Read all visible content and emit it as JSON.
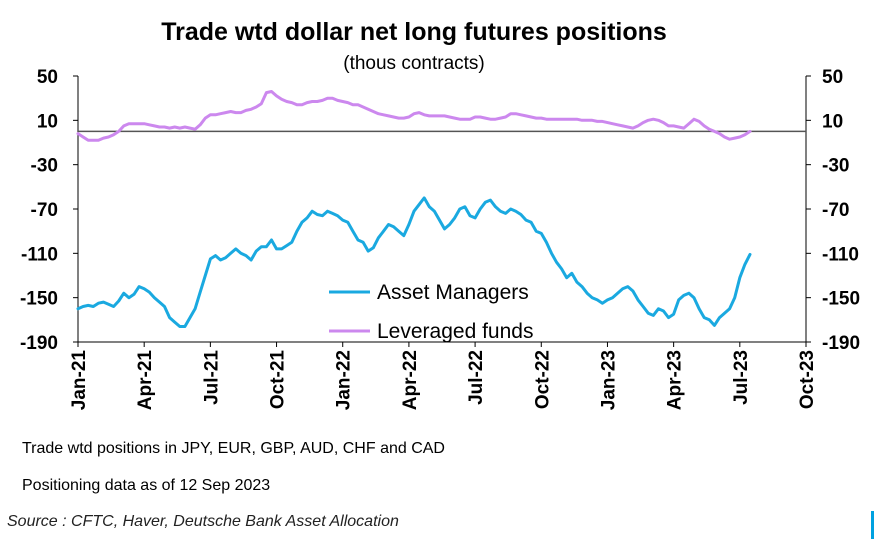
{
  "chart_data": {
    "type": "line",
    "title": "Trade wtd dollar net long futures positions",
    "subtitle": "(thous contracts)",
    "ylim": [
      -190,
      50
    ],
    "yticks": [
      50,
      10,
      -30,
      -70,
      -110,
      -150,
      -190
    ],
    "ytick_labels": [
      "50",
      "10",
      "-30",
      "-70",
      "-110",
      "-150",
      "-190"
    ],
    "zero_line": 0,
    "x_ticks": [
      {
        "label": "Jan-21",
        "week": 0
      },
      {
        "label": "Apr-21",
        "week": 13
      },
      {
        "label": "Jul-21",
        "week": 26
      },
      {
        "label": "Oct-21",
        "week": 39
      },
      {
        "label": "Jan-22",
        "week": 52
      },
      {
        "label": "Apr-22",
        "week": 65
      },
      {
        "label": "Jul-22",
        "week": 78
      },
      {
        "label": "Oct-22",
        "week": 91
      },
      {
        "label": "Jan-23",
        "week": 104
      },
      {
        "label": "Apr-23",
        "week": 117
      },
      {
        "label": "Jul-23",
        "week": 130
      },
      {
        "label": "Oct-23",
        "week": 143
      }
    ],
    "legend": [
      "Asset Managers",
      "Leveraged funds"
    ],
    "series": [
      {
        "name": "Asset Managers",
        "color": "#1aa9e0",
        "values": [
          -160,
          -158,
          -157,
          -158,
          -155,
          -154,
          -156,
          -158,
          -153,
          -146,
          -150,
          -147,
          -140,
          -142,
          -145,
          -150,
          -154,
          -158,
          -168,
          -172,
          -176,
          -176,
          -168,
          -160,
          -145,
          -130,
          -115,
          -112,
          -116,
          -114,
          -110,
          -106,
          -110,
          -112,
          -116,
          -108,
          -104,
          -104,
          -98,
          -106,
          -106,
          -103,
          -100,
          -90,
          -82,
          -78,
          -72,
          -75,
          -76,
          -72,
          -74,
          -76,
          -80,
          -82,
          -90,
          -98,
          -100,
          -108,
          -105,
          -96,
          -90,
          -84,
          -86,
          -90,
          -94,
          -84,
          -72,
          -66,
          -60,
          -68,
          -72,
          -80,
          -88,
          -84,
          -78,
          -70,
          -68,
          -76,
          -78,
          -70,
          -64,
          -62,
          -68,
          -72,
          -74,
          -70,
          -72,
          -75,
          -80,
          -82,
          -90,
          -92,
          -100,
          -110,
          -118,
          -124,
          -132,
          -128,
          -136,
          -140,
          -146,
          -150,
          -152,
          -155,
          -152,
          -150,
          -146,
          -142,
          -140,
          -144,
          -152,
          -158,
          -164,
          -166,
          -160,
          -162,
          -168,
          -165,
          -152,
          -148,
          -146,
          -150,
          -160,
          -168,
          -170,
          -175,
          -168,
          -164,
          -160,
          -150,
          -132,
          -120,
          -111
        ]
      },
      {
        "name": "Leveraged funds",
        "color": "#cc88ee",
        "values": [
          -2,
          -5,
          -8,
          -8,
          -8,
          -6,
          -5,
          -3,
          0,
          5,
          7,
          7,
          7,
          7,
          6,
          5,
          4,
          4,
          3,
          4,
          3,
          4,
          3,
          2,
          6,
          12,
          15,
          15,
          16,
          17,
          18,
          17,
          17,
          19,
          20,
          22,
          25,
          35,
          36,
          32,
          29,
          27,
          26,
          24,
          24,
          26,
          27,
          27,
          28,
          30,
          30,
          28,
          27,
          26,
          24,
          24,
          22,
          20,
          18,
          16,
          15,
          14,
          13,
          12,
          12,
          13,
          16,
          17,
          15,
          14,
          14,
          14,
          14,
          13,
          12,
          11,
          11,
          11,
          13,
          13,
          12,
          11,
          11,
          12,
          13,
          16,
          16,
          15,
          14,
          13,
          12,
          12,
          11,
          11,
          11,
          11,
          11,
          11,
          11,
          10,
          10,
          10,
          9,
          9,
          8,
          7,
          6,
          5,
          4,
          3,
          5,
          8,
          10,
          11,
          10,
          8,
          5,
          5,
          4,
          3,
          7,
          11,
          9,
          5,
          2,
          0,
          -2,
          -5,
          -7,
          -6,
          -5,
          -3,
          0
        ]
      }
    ]
  },
  "notes": {
    "line1": "Trade wtd positions in JPY, EUR, GBP, AUD, CHF and CAD",
    "line2": "Positioning data as of 12 Sep 2023"
  },
  "source": "Source : CFTC, Haver, Deutsche Bank Asset Allocation"
}
